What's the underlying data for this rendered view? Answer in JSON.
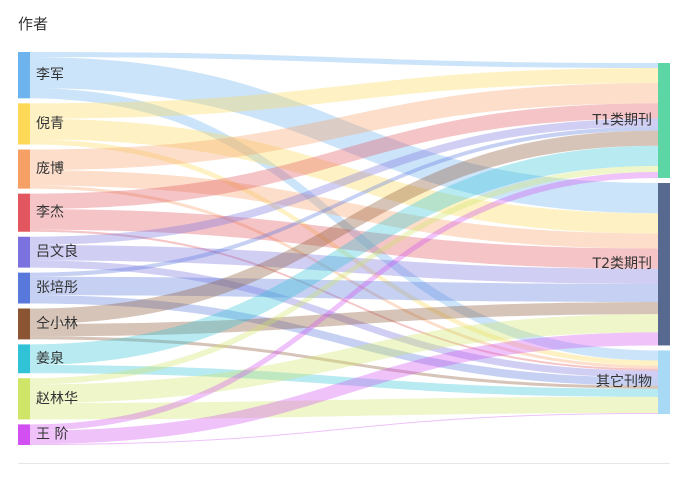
{
  "chart_data": {
    "type": "sankey",
    "title": "作者",
    "sources": [
      {
        "name": "李军",
        "color": "#6db3ee"
      },
      {
        "name": "倪青",
        "color": "#fdd957"
      },
      {
        "name": "庞博",
        "color": "#f7a066"
      },
      {
        "name": "李杰",
        "color": "#e2575f"
      },
      {
        "name": "吕文良",
        "color": "#7b72e0"
      },
      {
        "name": "张培彤",
        "color": "#5878dc"
      },
      {
        "name": "仝小林",
        "color": "#8b5533"
      },
      {
        "name": "姜泉",
        "color": "#30c2d6"
      },
      {
        "name": "赵林华",
        "color": "#cfe567"
      },
      {
        "name": "王 阶",
        "color": "#d24ff2"
      }
    ],
    "targets": [
      {
        "name": "T1类期刊",
        "color": "#5dd6a5"
      },
      {
        "name": "T2类期刊",
        "color": "#58698f"
      },
      {
        "name": "其它刊物",
        "color": "#a9daf5"
      }
    ],
    "links": [
      {
        "source": "李军",
        "target": "T1类期刊",
        "value": 0.5
      },
      {
        "source": "李军",
        "target": "T2类期刊",
        "value": 3.0
      },
      {
        "source": "李军",
        "target": "其它刊物",
        "value": 1.0
      },
      {
        "source": "倪青",
        "target": "T1类期刊",
        "value": 1.5
      },
      {
        "source": "倪青",
        "target": "T2类期刊",
        "value": 2.0
      },
      {
        "source": "倪青",
        "target": "其它刊物",
        "value": 0.5
      },
      {
        "source": "庞博",
        "target": "T1类期刊",
        "value": 2.0
      },
      {
        "source": "庞博",
        "target": "T2类期刊",
        "value": 1.5
      },
      {
        "source": "庞博",
        "target": "其它刊物",
        "value": 0.3
      },
      {
        "source": "李杰",
        "target": "T1类期刊",
        "value": 1.5
      },
      {
        "source": "李杰",
        "target": "T2类期刊",
        "value": 2.0
      },
      {
        "source": "李杰",
        "target": "其它刊物",
        "value": 0.2
      },
      {
        "source": "吕文良",
        "target": "T1类期刊",
        "value": 0.8
      },
      {
        "source": "吕文良",
        "target": "T2类期刊",
        "value": 1.5
      },
      {
        "source": "吕文良",
        "target": "其它刊物",
        "value": 0.7
      },
      {
        "source": "张培彤",
        "target": "T1类期刊",
        "value": 0.4
      },
      {
        "source": "张培彤",
        "target": "T2类期刊",
        "value": 1.8
      },
      {
        "source": "张培彤",
        "target": "其它刊物",
        "value": 0.8
      },
      {
        "source": "仝小林",
        "target": "T1类期刊",
        "value": 1.5
      },
      {
        "source": "仝小林",
        "target": "T2类期刊",
        "value": 1.2
      },
      {
        "source": "仝小林",
        "target": "其它刊物",
        "value": 0.3
      },
      {
        "source": "姜泉",
        "target": "T1类期刊",
        "value": 2.0
      },
      {
        "source": "姜泉",
        "target": "其它刊物",
        "value": 0.8
      },
      {
        "source": "赵林华",
        "target": "T1类期刊",
        "value": 0.6
      },
      {
        "source": "赵林华",
        "target": "T2类期刊",
        "value": 1.8
      },
      {
        "source": "赵林华",
        "target": "其它刊物",
        "value": 1.6
      },
      {
        "source": "王 阶",
        "target": "T1类期刊",
        "value": 0.6
      },
      {
        "source": "王 阶",
        "target": "T2类期刊",
        "value": 1.3
      },
      {
        "source": "王 阶",
        "target": "其它刊物",
        "value": 0.1
      }
    ]
  }
}
